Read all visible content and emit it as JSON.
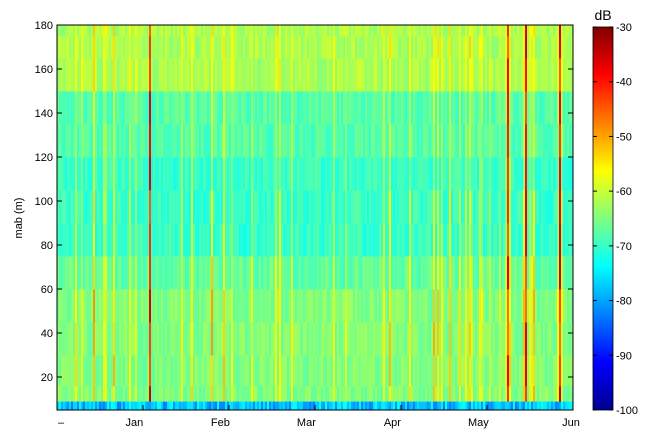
{
  "chart_data": {
    "type": "heatmap",
    "title": "",
    "xlabel": "",
    "ylabel": "mab (m)",
    "x_tick_labels": [
      "Jan",
      "Feb",
      "Mar",
      "Apr",
      "May",
      "Jun"
    ],
    "x_first_tick_label": "–",
    "y_ticks": [
      20,
      40,
      60,
      80,
      100,
      120,
      140,
      160,
      180
    ],
    "y_range": [
      5,
      180
    ],
    "grid": false,
    "colorbar": {
      "label": "dB",
      "range": [
        -100,
        -30
      ],
      "ticks": [
        -30,
        -40,
        -50,
        -60,
        -70,
        -80,
        -90,
        -100
      ],
      "colormap": "jet"
    },
    "summary": {
      "background_level_db": -67,
      "upper_band_level_db": -60,
      "hot_streak_max_db": -35,
      "bottom_band_db": -80,
      "active_periods": [
        "May"
      ]
    }
  }
}
